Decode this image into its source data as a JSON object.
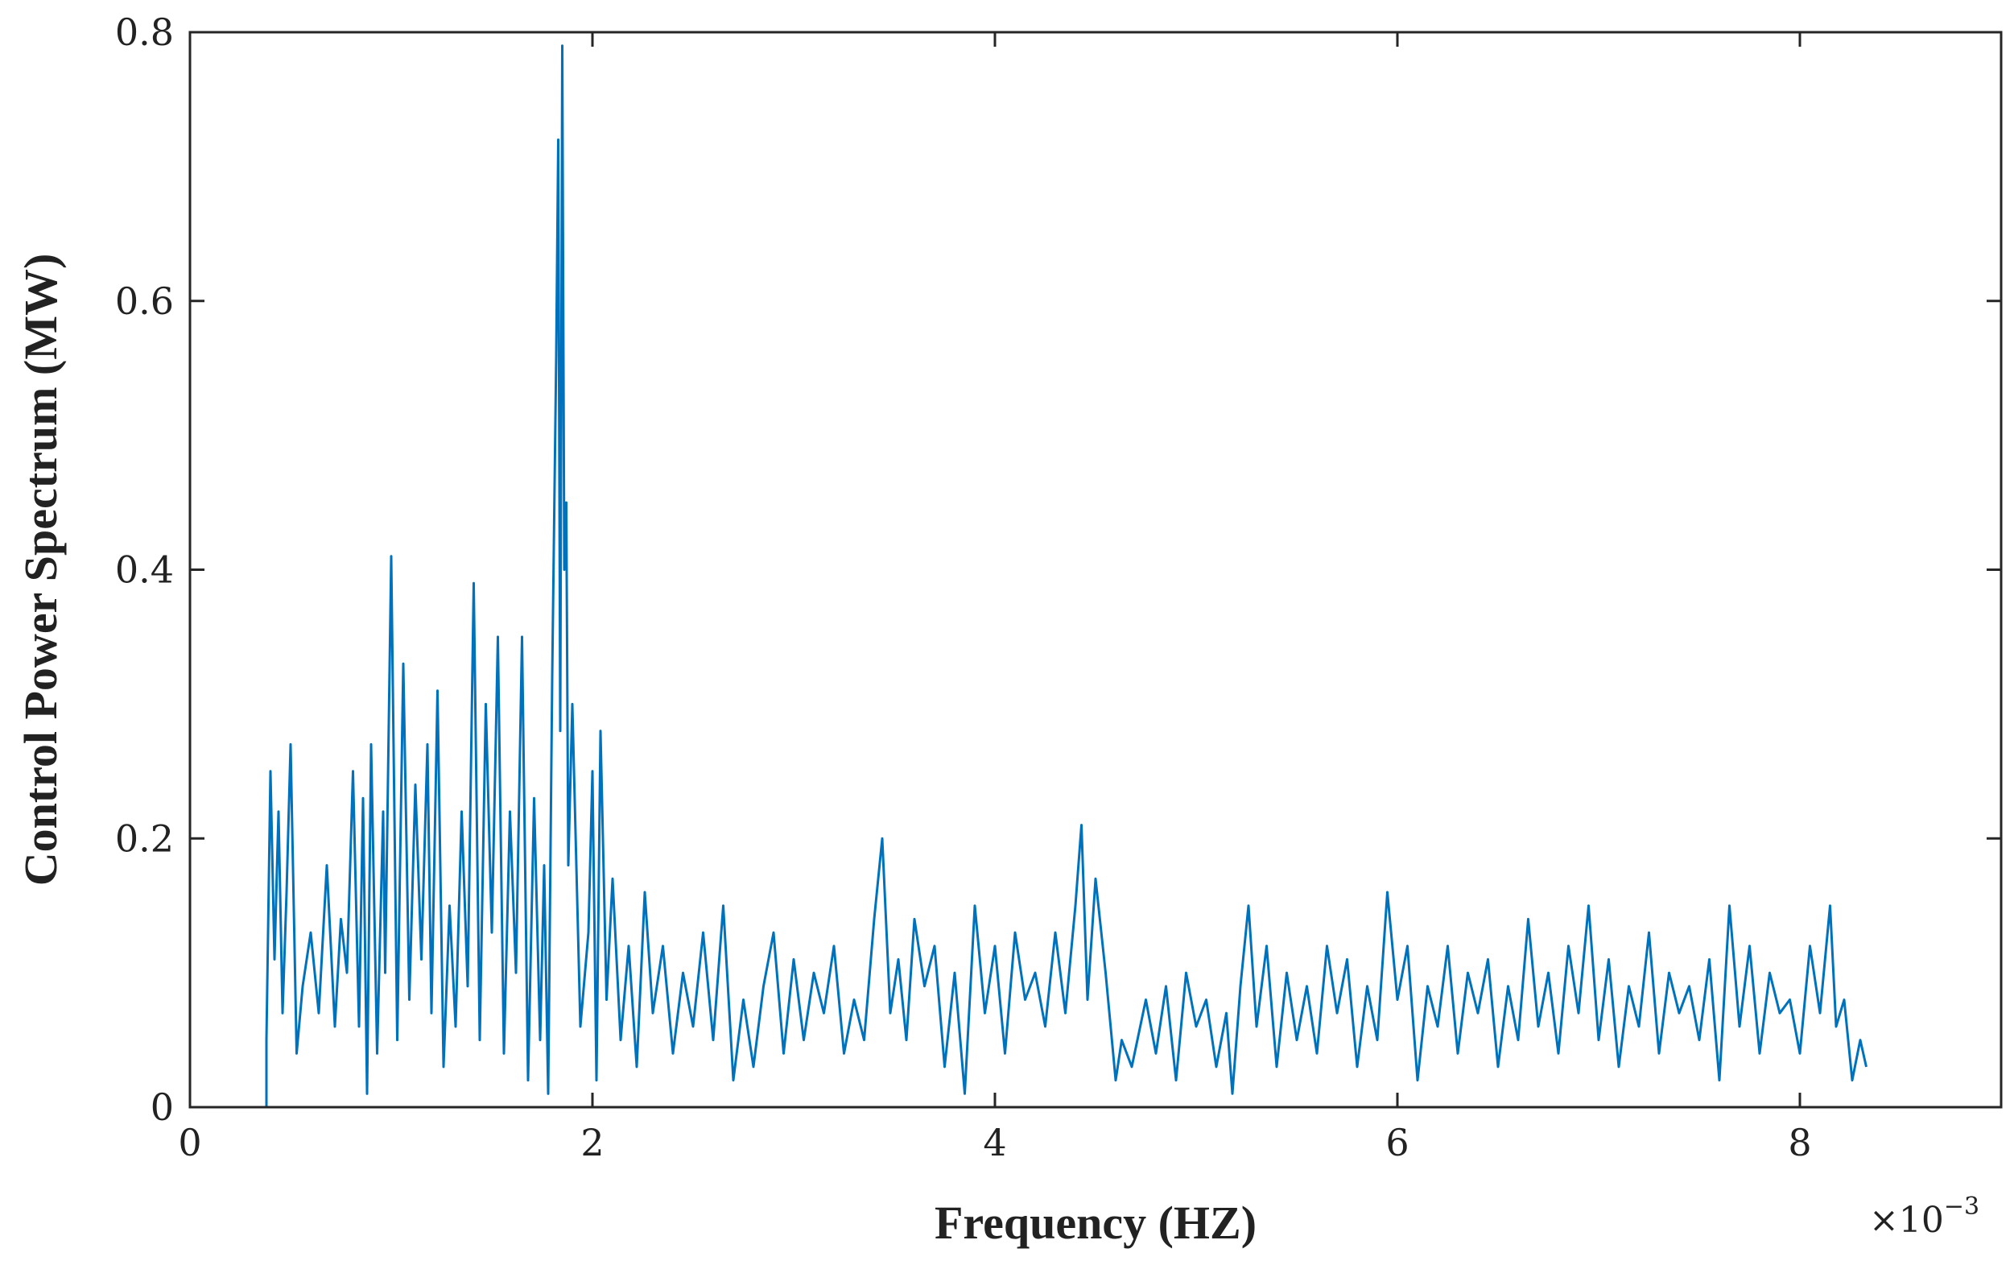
{
  "chart_data": {
    "type": "line",
    "title": "",
    "xlabel": "Frequency (HZ)",
    "ylabel": "Control Power Spectrum (MW)",
    "x_exponent_label": {
      "base": "×10",
      "exp": "−3"
    },
    "xlim": [
      0,
      9
    ],
    "ylim": [
      0,
      0.8
    ],
    "xticks": [
      0,
      2,
      4,
      6,
      8
    ],
    "yticks": [
      0,
      0.2,
      0.4,
      0.6,
      0.8
    ],
    "xtick_labels": [
      "0",
      "2",
      "4",
      "6",
      "8"
    ],
    "ytick_labels": [
      "0",
      "0.2",
      "0.4",
      "0.6",
      "0.8"
    ],
    "grid": false,
    "line_color": "#0072BD",
    "series": [
      {
        "x": [
          0,
          0.38,
          0.38,
          0.4,
          0.42,
          0.44,
          0.46,
          0.48,
          0.5,
          0.53,
          0.56,
          0.6,
          0.64,
          0.68,
          0.72,
          0.75,
          0.78,
          0.81,
          0.84,
          0.86,
          0.88,
          0.9,
          0.93,
          0.96,
          0.97,
          1.0,
          1.03,
          1.06,
          1.09,
          1.12,
          1.15,
          1.18,
          1.2,
          1.23,
          1.26,
          1.29,
          1.32,
          1.35,
          1.38,
          1.41,
          1.44,
          1.47,
          1.5,
          1.53,
          1.56,
          1.59,
          1.62,
          1.65,
          1.68,
          1.71,
          1.74,
          1.76,
          1.78,
          1.8,
          1.82,
          1.83,
          1.84,
          1.85,
          1.86,
          1.87,
          1.88,
          1.9,
          1.94,
          1.98,
          2.0,
          2.02,
          2.04,
          2.07,
          2.1,
          2.14,
          2.18,
          2.22,
          2.26,
          2.3,
          2.35,
          2.4,
          2.45,
          2.5,
          2.55,
          2.6,
          2.65,
          2.7,
          2.75,
          2.8,
          2.85,
          2.9,
          2.95,
          3.0,
          3.05,
          3.1,
          3.15,
          3.2,
          3.25,
          3.3,
          3.35,
          3.4,
          3.44,
          3.48,
          3.52,
          3.56,
          3.6,
          3.65,
          3.7,
          3.75,
          3.8,
          3.85,
          3.9,
          3.95,
          4.0,
          4.05,
          4.1,
          4.15,
          4.2,
          4.25,
          4.3,
          4.35,
          4.4,
          4.43,
          4.46,
          4.5,
          4.55,
          4.6,
          4.63,
          4.68,
          4.75,
          4.8,
          4.85,
          4.9,
          4.95,
          5.0,
          5.05,
          5.1,
          5.15,
          5.18,
          5.22,
          5.26,
          5.3,
          5.35,
          5.4,
          5.45,
          5.5,
          5.55,
          5.6,
          5.65,
          5.7,
          5.75,
          5.8,
          5.85,
          5.9,
          5.95,
          6.0,
          6.05,
          6.1,
          6.15,
          6.2,
          6.25,
          6.3,
          6.35,
          6.4,
          6.45,
          6.5,
          6.55,
          6.6,
          6.65,
          6.7,
          6.75,
          6.8,
          6.85,
          6.9,
          6.95,
          7.0,
          7.05,
          7.1,
          7.15,
          7.2,
          7.25,
          7.3,
          7.35,
          7.4,
          7.45,
          7.5,
          7.55,
          7.6,
          7.65,
          7.7,
          7.75,
          7.8,
          7.85,
          7.9,
          7.95,
          8.0,
          8.05,
          8.1,
          8.15,
          8.18,
          8.22,
          8.26,
          8.3,
          8.33
        ],
        "y": [
          0,
          0,
          0.05,
          0.25,
          0.11,
          0.22,
          0.07,
          0.16,
          0.27,
          0.04,
          0.09,
          0.13,
          0.07,
          0.18,
          0.06,
          0.14,
          0.1,
          0.25,
          0.06,
          0.23,
          0.01,
          0.27,
          0.04,
          0.22,
          0.1,
          0.41,
          0.05,
          0.33,
          0.08,
          0.24,
          0.11,
          0.27,
          0.07,
          0.31,
          0.03,
          0.15,
          0.06,
          0.22,
          0.09,
          0.39,
          0.05,
          0.3,
          0.13,
          0.35,
          0.04,
          0.22,
          0.1,
          0.35,
          0.02,
          0.23,
          0.05,
          0.18,
          0.01,
          0.32,
          0.56,
          0.72,
          0.28,
          0.79,
          0.4,
          0.45,
          0.18,
          0.3,
          0.06,
          0.13,
          0.25,
          0.02,
          0.28,
          0.08,
          0.17,
          0.05,
          0.12,
          0.03,
          0.16,
          0.07,
          0.12,
          0.04,
          0.1,
          0.06,
          0.13,
          0.05,
          0.15,
          0.02,
          0.08,
          0.03,
          0.09,
          0.13,
          0.04,
          0.11,
          0.05,
          0.1,
          0.07,
          0.12,
          0.04,
          0.08,
          0.05,
          0.14,
          0.2,
          0.07,
          0.11,
          0.05,
          0.14,
          0.09,
          0.12,
          0.03,
          0.1,
          0.01,
          0.15,
          0.07,
          0.12,
          0.04,
          0.13,
          0.08,
          0.1,
          0.06,
          0.13,
          0.07,
          0.15,
          0.21,
          0.08,
          0.17,
          0.1,
          0.02,
          0.05,
          0.03,
          0.08,
          0.04,
          0.09,
          0.02,
          0.1,
          0.06,
          0.08,
          0.03,
          0.07,
          0.01,
          0.09,
          0.15,
          0.06,
          0.12,
          0.03,
          0.1,
          0.05,
          0.09,
          0.04,
          0.12,
          0.07,
          0.11,
          0.03,
          0.09,
          0.05,
          0.16,
          0.08,
          0.12,
          0.02,
          0.09,
          0.06,
          0.12,
          0.04,
          0.1,
          0.07,
          0.11,
          0.03,
          0.09,
          0.05,
          0.14,
          0.06,
          0.1,
          0.04,
          0.12,
          0.07,
          0.15,
          0.05,
          0.11,
          0.03,
          0.09,
          0.06,
          0.13,
          0.04,
          0.1,
          0.07,
          0.09,
          0.05,
          0.11,
          0.02,
          0.15,
          0.06,
          0.12,
          0.04,
          0.1,
          0.07,
          0.08,
          0.04,
          0.12,
          0.07,
          0.15,
          0.06,
          0.08,
          0.02,
          0.05,
          0.03
        ]
      }
    ]
  }
}
